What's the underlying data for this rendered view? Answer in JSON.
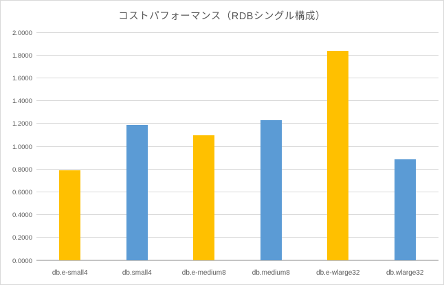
{
  "chart_data": {
    "type": "bar",
    "title": "コストパフォーマンス（RDBシングル構成）",
    "categories": [
      "db.e-small4",
      "db.small4",
      "db.e-medium8",
      "db.medium8",
      "db.e-wlarge32",
      "db.wlarge32"
    ],
    "values": [
      0.79,
      1.19,
      1.1,
      1.23,
      1.84,
      0.89
    ],
    "bar_colors": [
      "#FFC000",
      "#5B9BD5",
      "#FFC000",
      "#5B9BD5",
      "#FFC000",
      "#5B9BD5"
    ],
    "xlabel": "",
    "ylabel": "",
    "ylim": [
      0,
      2.0
    ],
    "ytick_step": 0.2,
    "ytick_decimals": 4,
    "grid": true,
    "legend_position": "none"
  },
  "colors": {
    "gold": "#FFC000",
    "blue": "#5B9BD5",
    "gridline": "#d9d9d9",
    "axis_line": "#bfbfbf",
    "text": "#595959"
  }
}
